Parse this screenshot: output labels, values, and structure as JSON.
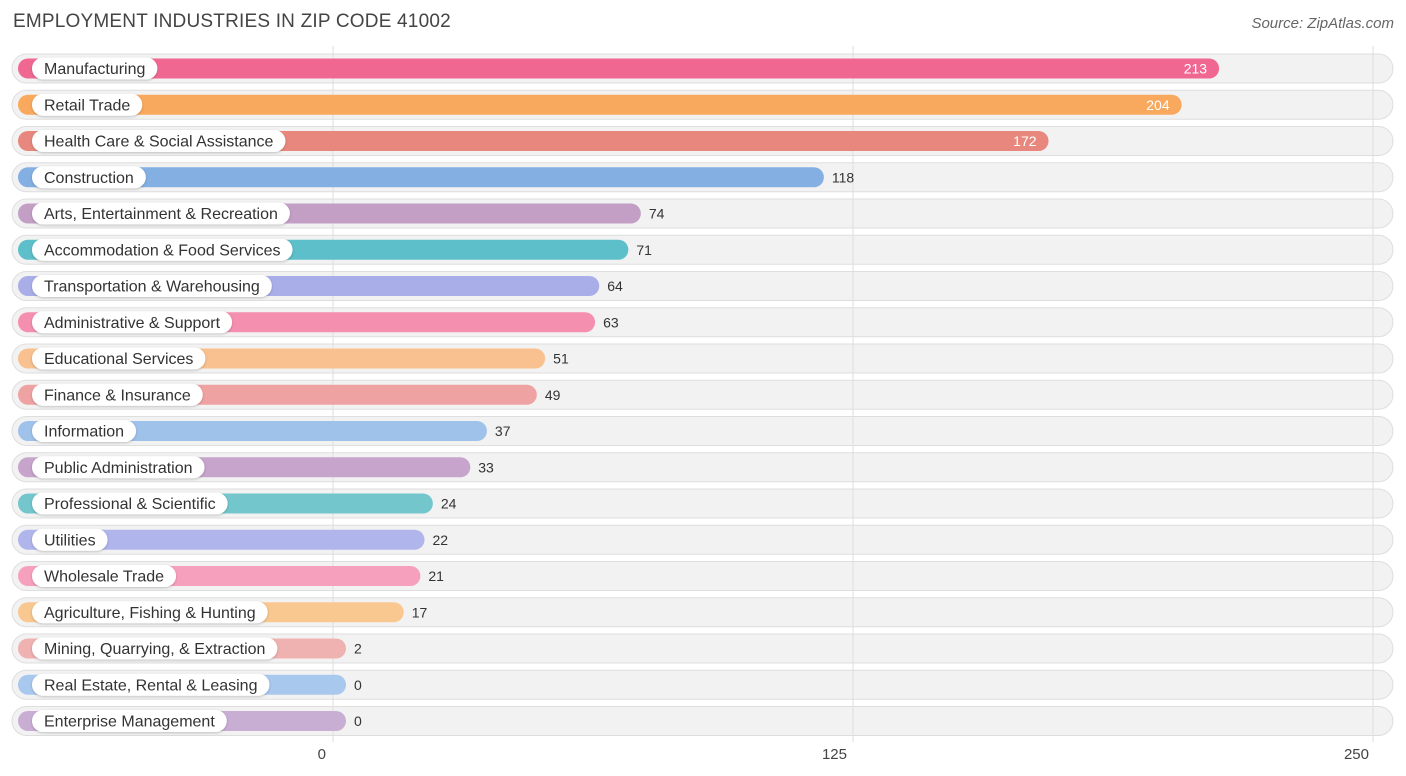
{
  "chart_data": {
    "type": "bar",
    "orientation": "horizontal",
    "title": "EMPLOYMENT INDUSTRIES IN ZIP CODE 41002",
    "source": "Source: ZipAtlas.com",
    "categories": [
      "Manufacturing",
      "Retail Trade",
      "Health Care & Social Assistance",
      "Construction",
      "Arts, Entertainment & Recreation",
      "Accommodation & Food Services",
      "Transportation & Warehousing",
      "Administrative & Support",
      "Educational Services",
      "Finance & Insurance",
      "Information",
      "Public Administration",
      "Professional & Scientific",
      "Utilities",
      "Wholesale Trade",
      "Agriculture, Fishing & Hunting",
      "Mining, Quarrying, & Extraction",
      "Real Estate, Rental & Leasing",
      "Enterprise Management"
    ],
    "values": [
      213,
      204,
      172,
      118,
      74,
      71,
      64,
      63,
      51,
      49,
      37,
      33,
      24,
      22,
      21,
      17,
      2,
      0,
      0
    ],
    "colors": [
      "#f06892",
      "#f9a95e",
      "#e8877d",
      "#83afe3",
      "#c39fc6",
      "#5dbfc9",
      "#a9aee8",
      "#f58fb0",
      "#f9c18f",
      "#eea3a2",
      "#9fc2ea",
      "#c6a4cb",
      "#72c6cc",
      "#b0b6ec",
      "#f6a0bd",
      "#f9c891",
      "#f0b1b1",
      "#a9c8ee",
      "#c9aed4"
    ],
    "xticks": [
      0,
      125,
      250
    ],
    "xlim": [
      0,
      250
    ],
    "xlabel": "",
    "ylabel": "",
    "grid": true
  }
}
